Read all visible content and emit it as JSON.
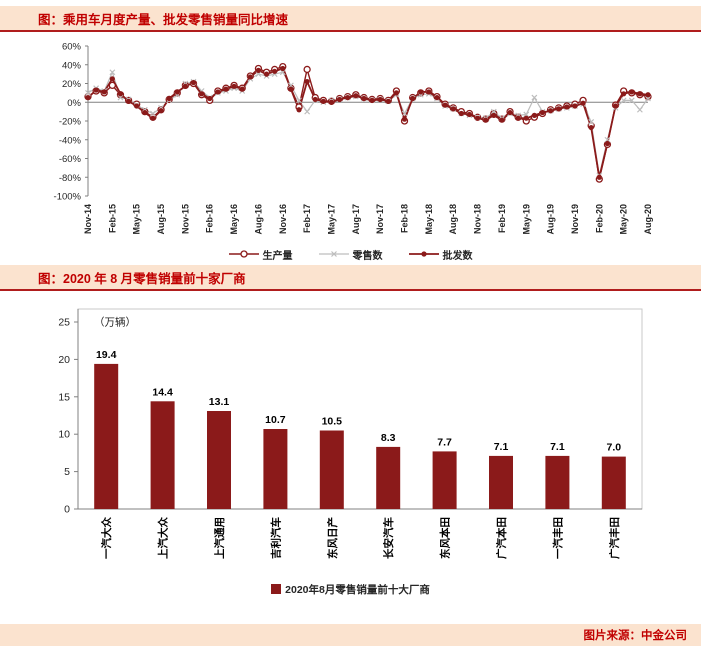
{
  "theme": {
    "accent_text": "#c00000",
    "band_bg": "#fbe3cf",
    "band_border": "#b01d1d",
    "bar_red": "#8b1a1a",
    "axis_gray": "#808080",
    "text_dark": "#262626"
  },
  "section1": {
    "title": "图：乘用车月度产量、批发零售销量同比增速"
  },
  "section2": {
    "title": "图：2020 年 8 月零售销量前十家厂商"
  },
  "footer": {
    "source": "图片来源：中金公司"
  },
  "chart_data": [
    {
      "type": "line",
      "title": "乘用车月度产量、批发零售销量同比增速",
      "x": [
        "Nov-14",
        "Dec-14",
        "Jan-15",
        "Feb-15",
        "Mar-15",
        "Apr-15",
        "May-15",
        "Jun-15",
        "Jul-15",
        "Aug-15",
        "Sep-15",
        "Oct-15",
        "Nov-15",
        "Dec-15",
        "Jan-16",
        "Feb-16",
        "Mar-16",
        "Apr-16",
        "May-16",
        "Jun-16",
        "Jul-16",
        "Aug-16",
        "Sep-16",
        "Oct-16",
        "Nov-16",
        "Dec-16",
        "Jan-17",
        "Feb-17",
        "Mar-17",
        "Apr-17",
        "May-17",
        "Jun-17",
        "Jul-17",
        "Aug-17",
        "Sep-17",
        "Oct-17",
        "Nov-17",
        "Dec-17",
        "Jan-18",
        "Feb-18",
        "Mar-18",
        "Apr-18",
        "May-18",
        "Jun-18",
        "Jul-18",
        "Aug-18",
        "Sep-18",
        "Oct-18",
        "Nov-18",
        "Dec-18",
        "Jan-19",
        "Feb-19",
        "Mar-19",
        "Apr-19",
        "May-19",
        "Jun-19",
        "Jul-19",
        "Aug-19",
        "Sep-19",
        "Oct-19",
        "Nov-19",
        "Dec-19",
        "Jan-20",
        "Feb-20",
        "Mar-20",
        "Apr-20",
        "May-20",
        "Jun-20",
        "Jul-20",
        "Aug-20"
      ],
      "tick_every": 3,
      "ylim": [
        -100,
        60
      ],
      "yticks": [
        60,
        40,
        20,
        0,
        -20,
        -40,
        -60,
        -80,
        -100
      ],
      "ytick_suffix": "%",
      "legend_position": "bottom",
      "series": [
        {
          "name": "生产量",
          "color": "#8b1a1a",
          "marker": "open-circle",
          "line_width": 1.4,
          "values": [
            6,
            12,
            10,
            18,
            8,
            2,
            -2,
            -10,
            -16,
            -8,
            3,
            10,
            18,
            20,
            8,
            2,
            12,
            15,
            18,
            15,
            28,
            36,
            32,
            35,
            38,
            15,
            -5,
            35,
            5,
            2,
            1,
            4,
            6,
            8,
            5,
            3,
            4,
            2,
            12,
            -20,
            5,
            10,
            12,
            6,
            -2,
            -6,
            -10,
            -12,
            -16,
            -18,
            -12,
            -18,
            -10,
            -16,
            -20,
            -16,
            -12,
            -8,
            -6,
            -4,
            -2,
            2,
            -25,
            -82,
            -45,
            -3,
            12,
            10,
            8,
            6
          ]
        },
        {
          "name": "零售数",
          "color": "#bdbdbd",
          "marker": "x",
          "line_width": 1.2,
          "values": [
            10,
            15,
            12,
            32,
            5,
            3,
            -3,
            -8,
            -12,
            -6,
            2,
            8,
            20,
            22,
            12,
            5,
            10,
            12,
            15,
            12,
            25,
            30,
            28,
            30,
            32,
            18,
            2,
            -10,
            2,
            0,
            2,
            3,
            5,
            6,
            4,
            2,
            3,
            1,
            8,
            -12,
            4,
            8,
            9,
            4,
            -4,
            -7,
            -12,
            -14,
            -16,
            -17,
            -10,
            -17,
            -12,
            -14,
            -13,
            5,
            -10,
            -9,
            -7,
            -6,
            -4,
            -2,
            -21,
            -78,
            -40,
            -6,
            2,
            2,
            -8,
            4
          ]
        },
        {
          "name": "批发数",
          "color": "#8b1a1a",
          "marker": "filled-circle",
          "line_width": 1.8,
          "values": [
            5,
            13,
            11,
            25,
            9,
            1,
            -4,
            -11,
            -17,
            -9,
            4,
            11,
            17,
            21,
            9,
            4,
            11,
            14,
            17,
            14,
            27,
            34,
            30,
            33,
            36,
            14,
            -8,
            22,
            3,
            1,
            0,
            3,
            5,
            7,
            4,
            2,
            3,
            1,
            10,
            -18,
            4,
            11,
            11,
            5,
            -3,
            -7,
            -12,
            -13,
            -17,
            -19,
            -14,
            -19,
            -11,
            -17,
            -17,
            -14,
            -11,
            -9,
            -7,
            -5,
            -4,
            -1,
            -27,
            -80,
            -44,
            -4,
            9,
            11,
            9,
            8
          ]
        }
      ]
    },
    {
      "type": "bar",
      "title": "2020年8月零售销量前十家厂商",
      "categories": [
        "一汽大众",
        "上汽大众",
        "上汽通用",
        "吉利汽车",
        "东风日产",
        "长安汽车",
        "东风本田",
        "广汽本田",
        "一汽丰田",
        "广汽丰田"
      ],
      "values": [
        19.4,
        14.4,
        13.1,
        10.7,
        10.5,
        8.3,
        7.7,
        7.1,
        7.1,
        7.0
      ],
      "unit_label": "（万辆）",
      "ylim": [
        0,
        25
      ],
      "yticks": [
        0,
        5,
        10,
        15,
        20,
        25
      ],
      "legend": "2020年8月零售销量前十大厂商",
      "bar_color": "#8b1a1a",
      "grid": false,
      "legend_position": "bottom"
    }
  ]
}
